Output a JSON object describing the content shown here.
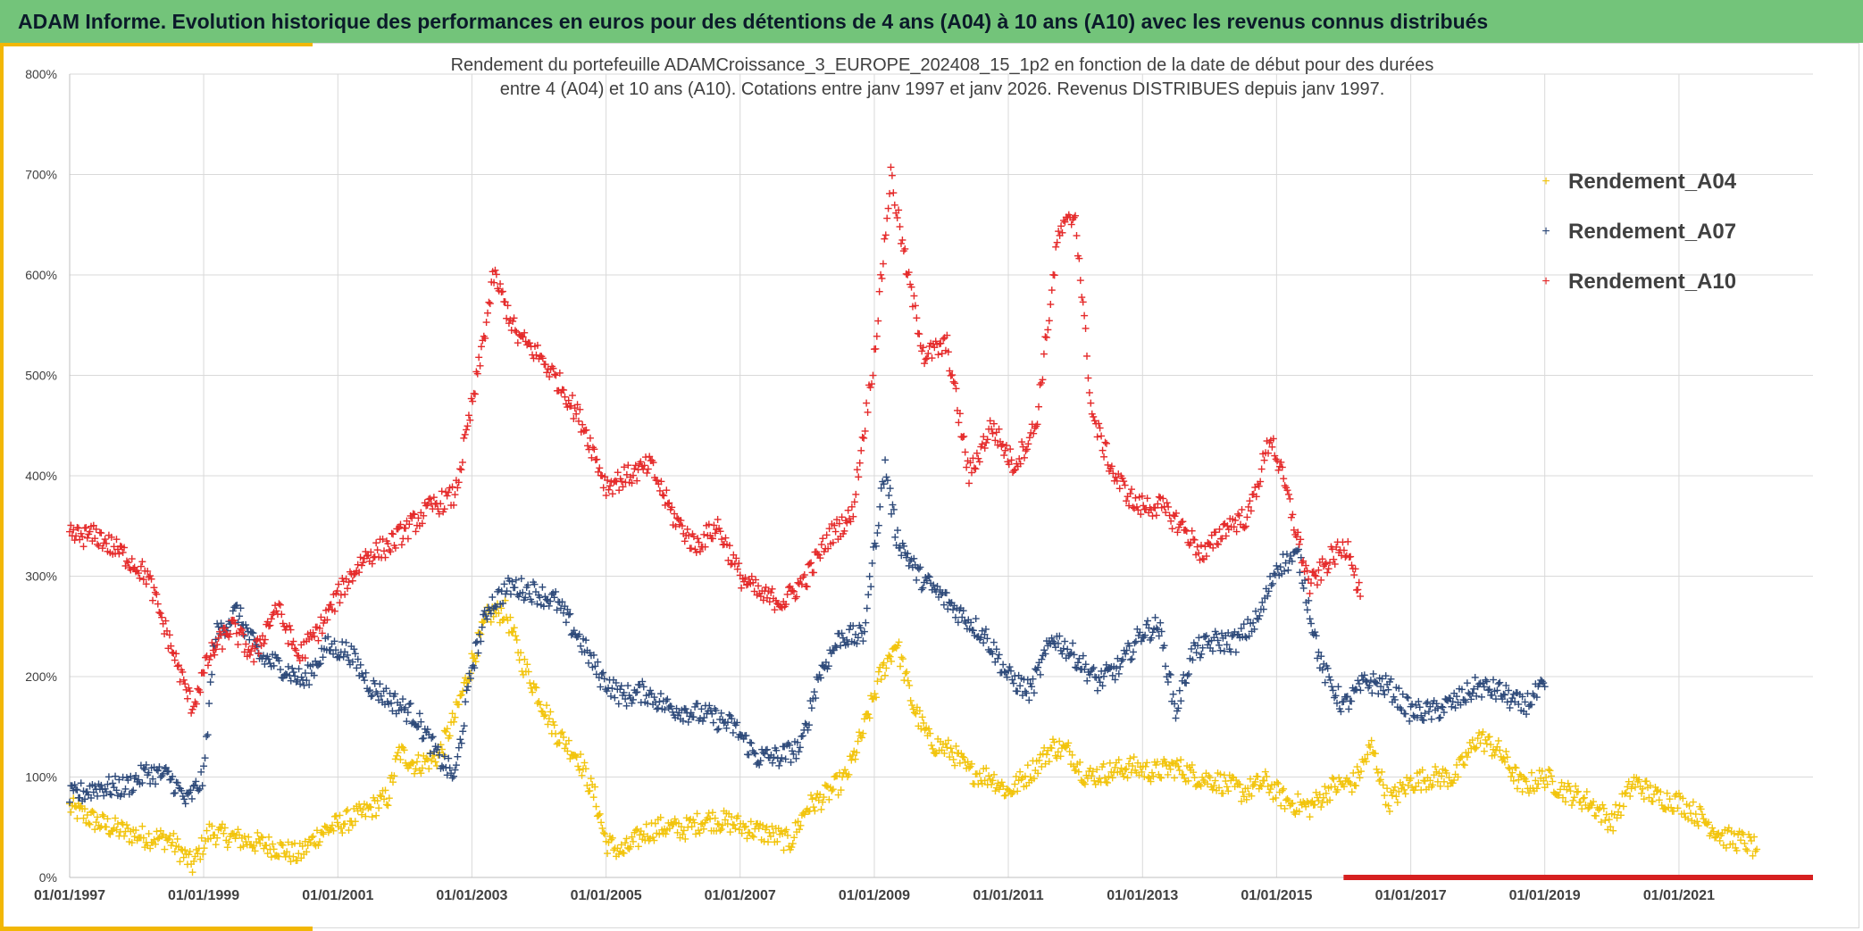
{
  "header": {
    "title": "ADAM Informe. Evolution historique des performances en euros pour des détentions de 4 ans (A04) à 10 ans (A10) avec les revenus connus distribués"
  },
  "chart_data": {
    "type": "scatter",
    "title": "Rendement du portefeuille ADAMCroissance_3_EUROPE_202408_15_1p2  en fonction de la date de début pour des durées",
    "subtitle": "entre 4 (A04) et 10 ans (A10). Cotations entre janv 1997 et janv 2026. Revenus DISTRIBUES depuis janv 1997.",
    "xlabel": "",
    "ylabel": "",
    "x_axis_type": "date",
    "xlim": [
      "1997-01-01",
      "2023-01-01"
    ],
    "ylim": [
      0,
      800
    ],
    "x_tick_labels": [
      "01/01/1997",
      "01/01/1999",
      "01/01/2001",
      "01/01/2003",
      "01/01/2005",
      "01/01/2007",
      "01/01/2009",
      "01/01/2011",
      "01/01/2013",
      "01/01/2015",
      "01/01/2017",
      "01/01/2019",
      "01/01/2021"
    ],
    "y_tick_labels": [
      "0%",
      "100%",
      "200%",
      "300%",
      "400%",
      "500%",
      "600%",
      "700%",
      "800%"
    ],
    "y_ticks": [
      0,
      100,
      200,
      300,
      400,
      500,
      600,
      700,
      800
    ],
    "grid": true,
    "legend_position": "top-right",
    "marker": "+",
    "series": [
      {
        "name": "Rendement_A04",
        "color": "#f2c40c",
        "points": [
          [
            "1997-01-01",
            70
          ],
          [
            "1997-06-01",
            55
          ],
          [
            "1997-11-01",
            45
          ],
          [
            "1998-03-01",
            40
          ],
          [
            "1998-07-01",
            38
          ],
          [
            "1998-11-01",
            12
          ],
          [
            "1999-02-01",
            45
          ],
          [
            "1999-06-01",
            40
          ],
          [
            "1999-10-01",
            35
          ],
          [
            "2000-02-01",
            30
          ],
          [
            "2000-06-01",
            22
          ],
          [
            "2000-10-01",
            45
          ],
          [
            "2001-02-01",
            55
          ],
          [
            "2001-06-01",
            65
          ],
          [
            "2001-10-01",
            80
          ],
          [
            "2001-12-01",
            125
          ],
          [
            "2002-03-01",
            112
          ],
          [
            "2002-07-01",
            120
          ],
          [
            "2002-10-01",
            160
          ],
          [
            "2003-01-01",
            215
          ],
          [
            "2003-04-01",
            262
          ],
          [
            "2003-07-01",
            265
          ],
          [
            "2003-10-01",
            215
          ],
          [
            "2004-01-01",
            180
          ],
          [
            "2004-04-01",
            145
          ],
          [
            "2004-08-01",
            120
          ],
          [
            "2004-11-01",
            80
          ],
          [
            "2005-01-01",
            35
          ],
          [
            "2005-04-01",
            25
          ],
          [
            "2005-08-01",
            45
          ],
          [
            "2005-11-01",
            50
          ],
          [
            "2006-03-01",
            48
          ],
          [
            "2006-07-01",
            58
          ],
          [
            "2006-11-01",
            55
          ],
          [
            "2007-03-01",
            48
          ],
          [
            "2007-07-01",
            42
          ],
          [
            "2007-10-01",
            35
          ],
          [
            "2008-01-01",
            70
          ],
          [
            "2008-04-01",
            80
          ],
          [
            "2008-08-01",
            100
          ],
          [
            "2008-11-01",
            145
          ],
          [
            "2009-02-01",
            200
          ],
          [
            "2009-05-01",
            235
          ],
          [
            "2009-08-01",
            170
          ],
          [
            "2009-11-01",
            135
          ],
          [
            "2010-03-01",
            125
          ],
          [
            "2010-06-01",
            105
          ],
          [
            "2010-10-01",
            100
          ],
          [
            "2011-01-01",
            85
          ],
          [
            "2011-05-01",
            105
          ],
          [
            "2011-09-01",
            130
          ],
          [
            "2011-12-01",
            125
          ],
          [
            "2012-03-01",
            100
          ],
          [
            "2012-07-01",
            105
          ],
          [
            "2012-11-01",
            110
          ],
          [
            "2013-03-01",
            105
          ],
          [
            "2013-07-01",
            110
          ],
          [
            "2013-11-01",
            100
          ],
          [
            "2014-03-01",
            95
          ],
          [
            "2014-07-01",
            85
          ],
          [
            "2014-11-01",
            95
          ],
          [
            "2015-03-01",
            75
          ],
          [
            "2015-07-01",
            70
          ],
          [
            "2015-11-01",
            90
          ],
          [
            "2016-03-01",
            95
          ],
          [
            "2016-06-01",
            130
          ],
          [
            "2016-09-01",
            75
          ],
          [
            "2017-01-01",
            95
          ],
          [
            "2017-05-01",
            100
          ],
          [
            "2017-09-01",
            100
          ],
          [
            "2018-01-01",
            140
          ],
          [
            "2018-05-01",
            125
          ],
          [
            "2018-09-01",
            90
          ],
          [
            "2019-01-01",
            100
          ],
          [
            "2019-05-01",
            85
          ],
          [
            "2019-09-01",
            75
          ],
          [
            "2020-01-01",
            55
          ],
          [
            "2020-05-01",
            95
          ],
          [
            "2020-09-01",
            80
          ],
          [
            "2021-01-01",
            75
          ],
          [
            "2021-05-01",
            60
          ],
          [
            "2021-09-01",
            40
          ],
          [
            "2022-01-01",
            35
          ],
          [
            "2022-03-01",
            28
          ]
        ]
      },
      {
        "name": "Rendement_A07",
        "color": "#2e4a7a",
        "points": [
          [
            "1997-01-01",
            80
          ],
          [
            "1997-06-01",
            90
          ],
          [
            "1997-11-01",
            90
          ],
          [
            "1998-03-01",
            105
          ],
          [
            "1998-07-01",
            100
          ],
          [
            "1998-10-01",
            75
          ],
          [
            "1999-01-01",
            100
          ],
          [
            "1999-03-01",
            240
          ],
          [
            "1999-07-01",
            265
          ],
          [
            "1999-11-01",
            220
          ],
          [
            "2000-03-01",
            210
          ],
          [
            "2000-07-01",
            195
          ],
          [
            "2000-11-01",
            230
          ],
          [
            "2001-03-01",
            225
          ],
          [
            "2001-07-01",
            190
          ],
          [
            "2001-11-01",
            175
          ],
          [
            "2002-03-01",
            160
          ],
          [
            "2002-07-01",
            120
          ],
          [
            "2002-10-01",
            100
          ],
          [
            "2003-01-01",
            210
          ],
          [
            "2003-04-01",
            270
          ],
          [
            "2003-08-01",
            290
          ],
          [
            "2003-12-01",
            285
          ],
          [
            "2004-04-01",
            275
          ],
          [
            "2004-08-01",
            240
          ],
          [
            "2004-12-01",
            200
          ],
          [
            "2005-04-01",
            180
          ],
          [
            "2005-08-01",
            185
          ],
          [
            "2005-12-01",
            170
          ],
          [
            "2006-04-01",
            165
          ],
          [
            "2006-08-01",
            160
          ],
          [
            "2006-12-01",
            150
          ],
          [
            "2007-04-01",
            120
          ],
          [
            "2007-08-01",
            120
          ],
          [
            "2007-12-01",
            130
          ],
          [
            "2008-03-01",
            200
          ],
          [
            "2008-07-01",
            240
          ],
          [
            "2008-11-01",
            240
          ],
          [
            "2009-03-01",
            410
          ],
          [
            "2009-05-01",
            340
          ],
          [
            "2009-09-01",
            300
          ],
          [
            "2010-01-01",
            280
          ],
          [
            "2010-05-01",
            260
          ],
          [
            "2010-09-01",
            240
          ],
          [
            "2011-01-01",
            200
          ],
          [
            "2011-05-01",
            185
          ],
          [
            "2011-09-01",
            240
          ],
          [
            "2012-01-01",
            220
          ],
          [
            "2012-05-01",
            195
          ],
          [
            "2012-09-01",
            210
          ],
          [
            "2013-01-01",
            245
          ],
          [
            "2013-04-01",
            250
          ],
          [
            "2013-07-01",
            165
          ],
          [
            "2013-10-01",
            225
          ],
          [
            "2014-02-01",
            235
          ],
          [
            "2014-06-01",
            235
          ],
          [
            "2014-10-01",
            260
          ],
          [
            "2015-01-01",
            310
          ],
          [
            "2015-05-01",
            320
          ],
          [
            "2015-09-01",
            210
          ],
          [
            "2016-01-01",
            170
          ],
          [
            "2016-05-01",
            195
          ],
          [
            "2016-09-01",
            190
          ],
          [
            "2017-01-01",
            165
          ],
          [
            "2017-05-01",
            165
          ],
          [
            "2017-09-01",
            175
          ],
          [
            "2018-01-01",
            190
          ],
          [
            "2018-05-01",
            185
          ],
          [
            "2018-09-01",
            170
          ],
          [
            "2019-01-01",
            190
          ]
        ]
      },
      {
        "name": "Rendement_A10",
        "color": "#e52a2a",
        "points": [
          [
            "1997-01-01",
            340
          ],
          [
            "1997-06-01",
            340
          ],
          [
            "1997-11-01",
            320
          ],
          [
            "1998-03-01",
            300
          ],
          [
            "1998-06-01",
            250
          ],
          [
            "1998-09-01",
            200
          ],
          [
            "1998-11-01",
            170
          ],
          [
            "1999-02-01",
            220
          ],
          [
            "1999-06-01",
            250
          ],
          [
            "1999-10-01",
            220
          ],
          [
            "2000-02-01",
            270
          ],
          [
            "2000-06-01",
            220
          ],
          [
            "2000-10-01",
            250
          ],
          [
            "2001-02-01",
            290
          ],
          [
            "2001-06-01",
            320
          ],
          [
            "2001-10-01",
            330
          ],
          [
            "2002-02-01",
            350
          ],
          [
            "2002-06-01",
            370
          ],
          [
            "2002-10-01",
            380
          ],
          [
            "2003-02-01",
            500
          ],
          [
            "2003-05-01",
            600
          ],
          [
            "2003-09-01",
            540
          ],
          [
            "2004-01-01",
            520
          ],
          [
            "2004-05-01",
            490
          ],
          [
            "2004-09-01",
            450
          ],
          [
            "2005-01-01",
            390
          ],
          [
            "2005-05-01",
            400
          ],
          [
            "2005-09-01",
            410
          ],
          [
            "2006-01-01",
            360
          ],
          [
            "2006-05-01",
            330
          ],
          [
            "2006-09-01",
            350
          ],
          [
            "2007-01-01",
            300
          ],
          [
            "2007-05-01",
            280
          ],
          [
            "2007-09-01",
            275
          ],
          [
            "2008-01-01",
            300
          ],
          [
            "2008-05-01",
            340
          ],
          [
            "2008-09-01",
            360
          ],
          [
            "2009-01-01",
            520
          ],
          [
            "2009-04-01",
            700
          ],
          [
            "2009-07-01",
            600
          ],
          [
            "2009-10-01",
            520
          ],
          [
            "2010-02-01",
            530
          ],
          [
            "2010-06-01",
            400
          ],
          [
            "2010-10-01",
            450
          ],
          [
            "2011-02-01",
            410
          ],
          [
            "2011-06-01",
            450
          ],
          [
            "2011-10-01",
            640
          ],
          [
            "2012-01-01",
            660
          ],
          [
            "2012-04-01",
            460
          ],
          [
            "2012-08-01",
            400
          ],
          [
            "2012-12-01",
            370
          ],
          [
            "2013-04-01",
            370
          ],
          [
            "2013-08-01",
            350
          ],
          [
            "2013-12-01",
            320
          ],
          [
            "2014-04-01",
            350
          ],
          [
            "2014-08-01",
            360
          ],
          [
            "2014-12-01",
            440
          ],
          [
            "2015-03-01",
            380
          ],
          [
            "2015-07-01",
            290
          ],
          [
            "2015-11-01",
            320
          ],
          [
            "2016-02-01",
            330
          ],
          [
            "2016-04-01",
            280
          ]
        ]
      }
    ],
    "baseline_marks": {
      "color": "#d62020",
      "x_start": "2016-01-01",
      "x_end": "2023-01-01",
      "y": 0
    }
  }
}
